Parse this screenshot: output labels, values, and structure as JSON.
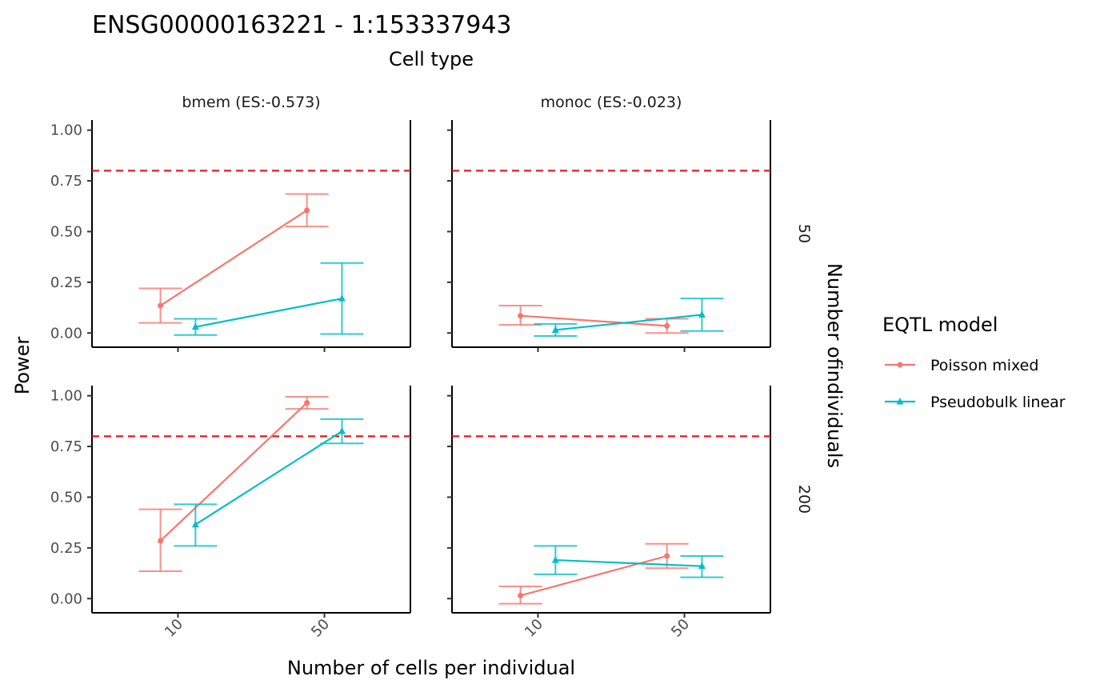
{
  "chart_data": {
    "type": "line",
    "title": "ENSG00000163221 - 1:153337943",
    "facet_col_title": "Cell type",
    "facet_row_title": "Number ofindividuals",
    "xlabel": "Number of cells per individual",
    "ylabel": "Power",
    "x_categories": [
      "10",
      "50"
    ],
    "y_ticks": [
      "0.00",
      "0.25",
      "0.50",
      "0.75",
      "1.00"
    ],
    "ylim": [
      -0.07,
      1.05
    ],
    "threshold": 0.8,
    "threshold_color": "#e41a1c",
    "legend": {
      "title": "EQTL model",
      "placement": "right"
    },
    "series": [
      {
        "name": "Poisson mixed",
        "color": "#f8766d",
        "marker": "circle"
      },
      {
        "name": "Pseudobulk linear",
        "color": "#00bfc4",
        "marker": "triangle"
      }
    ],
    "columns": [
      "bmem (ES:-0.573)",
      "monoc (ES:-0.023)"
    ],
    "rows": [
      "50",
      "200"
    ],
    "panels": [
      {
        "column": "bmem (ES:-0.573)",
        "row": "50",
        "series": [
          {
            "name": "Poisson mixed",
            "values": [
              0.135,
              0.605
            ],
            "lower": [
              0.05,
              0.525
            ],
            "upper": [
              0.22,
              0.685
            ]
          },
          {
            "name": "Pseudobulk linear",
            "values": [
              0.03,
              0.17
            ],
            "lower": [
              -0.01,
              -0.005
            ],
            "upper": [
              0.07,
              0.345
            ]
          }
        ]
      },
      {
        "column": "monoc (ES:-0.023)",
        "row": "50",
        "series": [
          {
            "name": "Poisson mixed",
            "values": [
              0.085,
              0.035
            ],
            "lower": [
              0.04,
              0.0
            ],
            "upper": [
              0.135,
              0.07
            ]
          },
          {
            "name": "Pseudobulk linear",
            "values": [
              0.015,
              0.09
            ],
            "lower": [
              -0.015,
              0.01
            ],
            "upper": [
              0.045,
              0.17
            ]
          }
        ]
      },
      {
        "column": "bmem (ES:-0.573)",
        "row": "200",
        "series": [
          {
            "name": "Poisson mixed",
            "values": [
              0.285,
              0.965
            ],
            "lower": [
              0.135,
              0.935
            ],
            "upper": [
              0.44,
              0.995
            ]
          },
          {
            "name": "Pseudobulk linear",
            "values": [
              0.365,
              0.825
            ],
            "lower": [
              0.26,
              0.765
            ],
            "upper": [
              0.465,
              0.885
            ]
          }
        ]
      },
      {
        "column": "monoc (ES:-0.023)",
        "row": "200",
        "series": [
          {
            "name": "Poisson mixed",
            "values": [
              0.015,
              0.21
            ],
            "lower": [
              -0.025,
              0.15
            ],
            "upper": [
              0.06,
              0.27
            ]
          },
          {
            "name": "Pseudobulk linear",
            "values": [
              0.19,
              0.16
            ],
            "lower": [
              0.12,
              0.105
            ],
            "upper": [
              0.26,
              0.21
            ]
          }
        ]
      }
    ]
  }
}
